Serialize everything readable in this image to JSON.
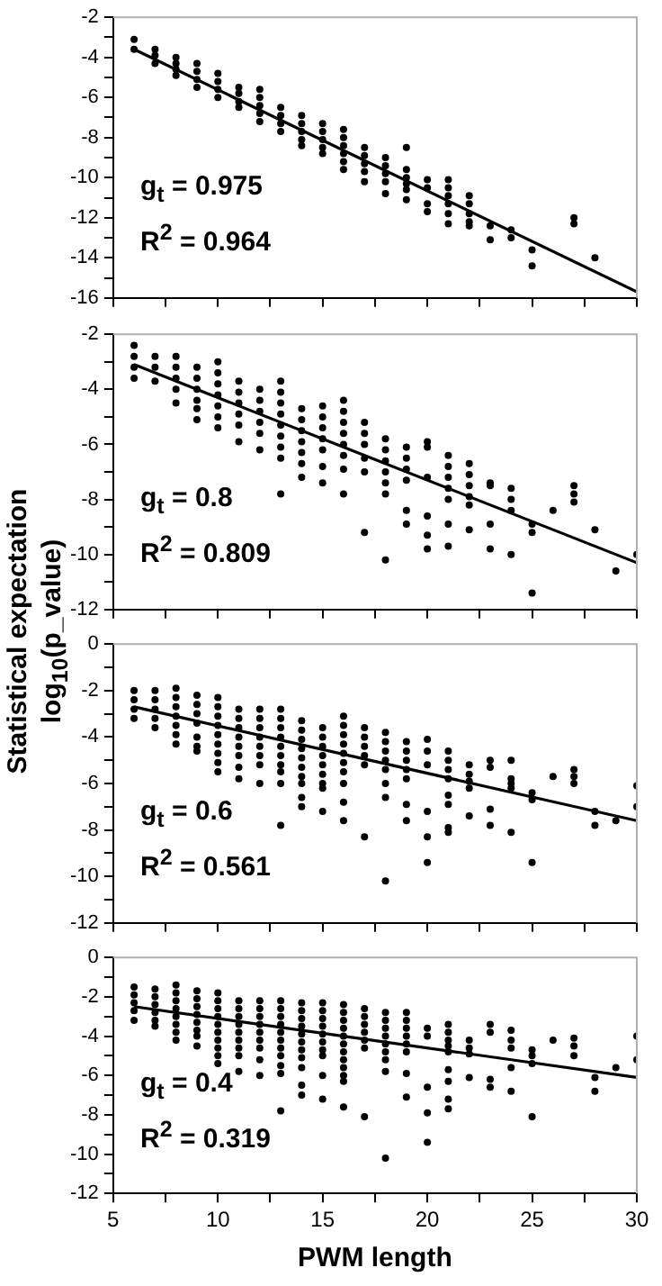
{
  "chart_data": [
    {
      "type": "scatter",
      "tick_labels": "y",
      "xlim": [
        5,
        30
      ],
      "xticks": [
        5,
        {
          "value": 7.5,
          "label": null
        },
        10,
        {
          "value": 12.5,
          "label": null
        },
        15,
        {
          "value": 17.5,
          "label": null
        },
        20,
        {
          "value": 22.5,
          "label": null
        },
        25,
        {
          "value": 27.5,
          "label": null
        },
        30
      ],
      "ylim": [
        -16,
        -2
      ],
      "yticks": [
        -16,
        {
          "value": -15,
          "label": null
        },
        -14,
        {
          "value": -13,
          "label": null
        },
        -12,
        {
          "value": -11,
          "label": null
        },
        -10,
        {
          "value": -9,
          "label": null
        },
        -8,
        {
          "value": -7,
          "label": null
        },
        -6,
        {
          "value": -5,
          "label": null
        },
        -4,
        {
          "value": -3,
          "label": null
        },
        -2
      ],
      "annotations": [
        "g$_{t}$ = 0.975",
        "R$^{2}$ = 0.964"
      ],
      "series": [
        {
          "marker": "circle",
          "color": "#000000",
          "x": [
            6,
            6,
            7,
            7,
            7,
            8,
            8,
            8,
            8,
            9,
            9,
            9,
            9,
            10,
            10,
            10,
            10,
            11,
            11,
            11,
            11,
            12,
            12,
            12,
            12,
            12,
            13,
            13,
            13,
            13,
            14,
            14,
            14,
            14,
            14,
            15,
            15,
            15,
            15,
            15,
            16,
            16,
            16,
            16,
            16,
            16,
            17,
            17,
            17,
            17,
            17,
            18,
            18,
            18,
            18,
            18,
            19,
            19,
            19,
            19,
            19,
            19,
            20,
            20,
            20,
            20,
            21,
            21,
            21,
            21,
            21,
            21,
            22,
            22,
            22,
            22,
            22,
            23,
            23,
            24,
            24,
            25,
            25,
            27,
            27,
            28
          ],
          "values": [
            -3.1,
            -3.6,
            -3.6,
            -3.9,
            -4.3,
            -4.0,
            -4.3,
            -4.6,
            -4.9,
            -4.3,
            -4.7,
            -5.1,
            -5.5,
            -4.8,
            -5.2,
            -5.6,
            -6.0,
            -5.5,
            -5.8,
            -6.2,
            -6.5,
            -5.6,
            -6.0,
            -6.4,
            -6.8,
            -7.2,
            -6.5,
            -6.9,
            -7.3,
            -7.7,
            -6.9,
            -7.3,
            -7.7,
            -8.1,
            -8.4,
            -7.3,
            -7.7,
            -8.1,
            -8.5,
            -8.8,
            -7.6,
            -8.0,
            -8.4,
            -8.8,
            -9.2,
            -9.6,
            -8.5,
            -8.9,
            -9.3,
            -9.7,
            -10.2,
            -9.0,
            -9.4,
            -9.8,
            -10.2,
            -10.8,
            -8.5,
            -9.6,
            -10.0,
            -10.3,
            -10.6,
            -11.1,
            -10.1,
            -10.5,
            -11.3,
            -11.7,
            -10.1,
            -10.5,
            -10.9,
            -11.3,
            -11.8,
            -12.3,
            -10.9,
            -11.3,
            -11.8,
            -12.2,
            -12.4,
            -12.4,
            -13.1,
            -12.6,
            -13.0,
            -13.6,
            -14.4,
            -12.0,
            -12.3,
            -14.0
          ]
        },
        {
          "type": "line",
          "marker": "none",
          "color": "#000000",
          "x": [
            6,
            30
          ],
          "values": [
            -3.6,
            -15.7
          ]
        }
      ]
    },
    {
      "type": "scatter",
      "tick_labels": "y",
      "ylabel": "Statistical expectation log$_{10}$(p_value)",
      "xlim": [
        5,
        30
      ],
      "xticks": [
        5,
        {
          "value": 7.5,
          "label": null
        },
        10,
        {
          "value": 12.5,
          "label": null
        },
        15,
        {
          "value": 17.5,
          "label": null
        },
        20,
        {
          "value": 22.5,
          "label": null
        },
        25,
        {
          "value": 27.5,
          "label": null
        },
        30
      ],
      "ylim": [
        -12,
        -2
      ],
      "yticks": [
        -12,
        {
          "value": -11,
          "label": null
        },
        -10,
        {
          "value": -9,
          "label": null
        },
        -8,
        {
          "value": -7,
          "label": null
        },
        -6,
        {
          "value": -5,
          "label": null
        },
        -4,
        {
          "value": -3,
          "label": null
        },
        -2
      ],
      "annotations": [
        "g$_{t}$ = 0.8",
        "R$^{2}$ = 0.809"
      ],
      "series": [
        {
          "marker": "circle",
          "color": "#000000",
          "x": [
            6,
            6,
            6,
            6,
            7,
            7,
            7,
            8,
            8,
            8,
            8,
            8,
            9,
            9,
            9,
            9,
            9,
            9,
            10,
            10,
            10,
            10,
            10,
            10,
            10,
            11,
            11,
            11,
            11,
            11,
            11,
            12,
            12,
            12,
            12,
            12,
            12,
            13,
            13,
            13,
            13,
            13,
            13,
            13,
            13,
            13,
            14,
            14,
            14,
            14,
            14,
            14,
            14,
            15,
            15,
            15,
            15,
            15,
            15,
            15,
            16,
            16,
            16,
            16,
            16,
            16,
            16,
            16,
            17,
            17,
            17,
            17,
            17,
            17,
            18,
            18,
            18,
            18,
            18,
            18,
            18,
            19,
            19,
            19,
            19,
            19,
            19,
            20,
            20,
            20,
            20,
            20,
            20,
            21,
            21,
            21,
            21,
            21,
            21,
            21,
            22,
            22,
            22,
            22,
            22,
            22,
            23,
            23,
            23,
            23,
            24,
            24,
            24,
            24,
            25,
            25,
            25,
            26,
            27,
            27,
            27,
            28,
            29,
            30
          ],
          "values": [
            -2.4,
            -2.8,
            -3.2,
            -3.6,
            -2.8,
            -3.2,
            -3.7,
            -2.8,
            -3.2,
            -3.6,
            -4.0,
            -4.5,
            -3.2,
            -3.6,
            -4.0,
            -4.4,
            -4.7,
            -5.1,
            -3.0,
            -3.4,
            -3.8,
            -4.2,
            -4.6,
            -5.0,
            -5.4,
            -3.7,
            -4.1,
            -4.5,
            -4.9,
            -5.3,
            -5.9,
            -4.0,
            -4.4,
            -4.8,
            -5.2,
            -5.6,
            -6.2,
            -3.7,
            -4.1,
            -4.5,
            -4.9,
            -5.3,
            -5.7,
            -6.1,
            -6.5,
            -7.8,
            -4.7,
            -5.1,
            -5.5,
            -5.9,
            -6.3,
            -6.7,
            -7.2,
            -4.6,
            -5.0,
            -5.4,
            -5.8,
            -6.2,
            -6.8,
            -7.4,
            -4.4,
            -4.8,
            -5.2,
            -5.6,
            -6.0,
            -6.4,
            -6.9,
            -7.8,
            -5.2,
            -5.6,
            -6.0,
            -6.5,
            -7.0,
            -9.2,
            -5.8,
            -6.2,
            -6.6,
            -7.0,
            -7.4,
            -7.8,
            -10.2,
            -6.1,
            -6.5,
            -6.9,
            -7.3,
            -8.4,
            -8.9,
            -5.9,
            -6.1,
            -7.2,
            -8.6,
            -9.3,
            -9.8,
            -6.4,
            -6.8,
            -7.2,
            -7.6,
            -8.0,
            -8.9,
            -9.7,
            -6.7,
            -7.1,
            -7.5,
            -7.9,
            -8.2,
            -9.1,
            -7.4,
            -7.5,
            -8.9,
            -9.8,
            -7.6,
            -8.0,
            -8.4,
            -10.0,
            -8.9,
            -9.2,
            -11.4,
            -8.4,
            -7.5,
            -7.8,
            -8.1,
            -9.1,
            -10.6,
            -10.0
          ]
        },
        {
          "type": "line",
          "marker": "none",
          "color": "#000000",
          "x": [
            6,
            30
          ],
          "values": [
            -3.1,
            -10.3
          ]
        }
      ]
    },
    {
      "type": "scatter",
      "tick_labels": "y",
      "xlim": [
        5,
        30
      ],
      "xticks": [
        5,
        {
          "value": 7.5,
          "label": null
        },
        10,
        {
          "value": 12.5,
          "label": null
        },
        15,
        {
          "value": 17.5,
          "label": null
        },
        20,
        {
          "value": 22.5,
          "label": null
        },
        25,
        {
          "value": 27.5,
          "label": null
        },
        30
      ],
      "ylim": [
        -12,
        0
      ],
      "yticks": [
        -12,
        {
          "value": -11,
          "label": null
        },
        -10,
        {
          "value": -9,
          "label": null
        },
        -8,
        {
          "value": -7,
          "label": null
        },
        -6,
        {
          "value": -5,
          "label": null
        },
        -4,
        {
          "value": -3,
          "label": null
        },
        -2,
        {
          "value": -1,
          "label": null
        },
        0
      ],
      "annotations": [
        "g$_{t}$ = 0.6",
        "R$^{2}$ = 0.561"
      ],
      "series": [
        {
          "marker": "circle",
          "color": "#000000",
          "x": [
            6,
            6,
            6,
            6,
            7,
            7,
            7,
            7,
            7,
            8,
            8,
            8,
            8,
            8,
            8,
            8,
            9,
            9,
            9,
            9,
            9,
            9,
            9,
            10,
            10,
            10,
            10,
            10,
            10,
            10,
            10,
            10,
            11,
            11,
            11,
            11,
            11,
            11,
            11,
            11,
            12,
            12,
            12,
            12,
            12,
            12,
            12,
            12,
            13,
            13,
            13,
            13,
            13,
            13,
            13,
            13,
            13,
            13,
            14,
            14,
            14,
            14,
            14,
            14,
            14,
            14,
            14,
            14,
            15,
            15,
            15,
            15,
            15,
            15,
            15,
            15,
            15,
            16,
            16,
            16,
            16,
            16,
            16,
            16,
            16,
            16,
            16,
            17,
            17,
            17,
            17,
            17,
            17,
            18,
            18,
            18,
            18,
            18,
            18,
            18,
            18,
            19,
            19,
            19,
            19,
            19,
            19,
            19,
            20,
            20,
            20,
            20,
            20,
            20,
            21,
            21,
            21,
            21,
            21,
            21,
            21,
            21,
            22,
            22,
            22,
            22,
            22,
            23,
            23,
            23,
            23,
            24,
            24,
            24,
            24,
            24,
            25,
            25,
            25,
            26,
            27,
            27,
            27,
            28,
            28,
            29,
            30,
            30
          ],
          "values": [
            -2.0,
            -2.4,
            -2.8,
            -3.2,
            -2.0,
            -2.4,
            -2.8,
            -3.2,
            -3.6,
            -1.9,
            -2.3,
            -2.7,
            -3.1,
            -3.5,
            -3.9,
            -4.3,
            -2.2,
            -2.6,
            -3.0,
            -3.4,
            -4.0,
            -4.4,
            -4.6,
            -2.3,
            -2.7,
            -3.1,
            -3.5,
            -3.9,
            -4.3,
            -4.7,
            -5.1,
            -5.5,
            -2.8,
            -3.2,
            -3.6,
            -4.0,
            -4.4,
            -4.8,
            -5.3,
            -5.8,
            -2.8,
            -3.2,
            -3.6,
            -4.0,
            -4.4,
            -4.8,
            -5.2,
            -6.0,
            -2.8,
            -3.2,
            -3.6,
            -4.0,
            -4.4,
            -4.8,
            -5.2,
            -5.5,
            -6.0,
            -7.8,
            -3.3,
            -3.7,
            -4.1,
            -4.5,
            -4.9,
            -5.3,
            -5.7,
            -6.0,
            -6.6,
            -7.0,
            -3.6,
            -4.0,
            -4.4,
            -4.8,
            -5.2,
            -5.6,
            -6.0,
            -6.2,
            -7.2,
            -3.1,
            -3.5,
            -3.9,
            -4.3,
            -4.7,
            -5.1,
            -5.5,
            -6.0,
            -6.8,
            -7.6,
            -3.6,
            -4.0,
            -4.4,
            -4.8,
            -5.2,
            -8.3,
            -3.8,
            -4.2,
            -4.6,
            -5.0,
            -5.4,
            -6.0,
            -6.6,
            -10.2,
            -4.2,
            -4.6,
            -5.0,
            -5.4,
            -5.8,
            -6.9,
            -7.6,
            -4.1,
            -4.6,
            -5.2,
            -7.2,
            -8.3,
            -9.4,
            -4.6,
            -5.0,
            -5.4,
            -5.8,
            -6.5,
            -6.9,
            -7.9,
            -8.1,
            -5.2,
            -5.6,
            -5.9,
            -6.2,
            -7.4,
            -5.0,
            -5.3,
            -7.1,
            -7.8,
            -5.0,
            -5.8,
            -6.0,
            -6.2,
            -8.1,
            -6.4,
            -6.7,
            -9.4,
            -5.7,
            -5.4,
            -5.7,
            -6.0,
            -7.2,
            -7.8,
            -7.6,
            -6.1,
            -7.0
          ]
        },
        {
          "type": "line",
          "marker": "none",
          "color": "#000000",
          "x": [
            6,
            30
          ],
          "values": [
            -2.7,
            -7.6
          ]
        }
      ]
    },
    {
      "type": "scatter",
      "xlabel": "PWM length",
      "xlim": [
        5,
        30
      ],
      "xticks": [
        5,
        {
          "value": 7.5,
          "label": null
        },
        10,
        {
          "value": 12.5,
          "label": null
        },
        15,
        {
          "value": 17.5,
          "label": null
        },
        20,
        {
          "value": 22.5,
          "label": null
        },
        25,
        {
          "value": 27.5,
          "label": null
        },
        30
      ],
      "ylim": [
        -12,
        0
      ],
      "yticks": [
        -12,
        {
          "value": -11,
          "label": null
        },
        -10,
        {
          "value": -9,
          "label": null
        },
        -8,
        {
          "value": -7,
          "label": null
        },
        -6,
        {
          "value": -5,
          "label": null
        },
        -4,
        {
          "value": -3,
          "label": null
        },
        -2,
        {
          "value": -1,
          "label": null
        },
        0
      ],
      "annotations": [
        "g$_{t}$ = 0.4",
        "R$^{2}$ = 0.319"
      ],
      "series": [
        {
          "marker": "circle",
          "color": "#000000",
          "x": [
            6,
            6,
            6,
            6,
            6,
            7,
            7,
            7,
            7,
            7,
            7,
            8,
            8,
            8,
            8,
            8,
            8,
            8,
            8,
            9,
            9,
            9,
            9,
            9,
            9,
            9,
            9,
            10,
            10,
            10,
            10,
            10,
            10,
            10,
            10,
            10,
            10,
            11,
            11,
            11,
            11,
            11,
            11,
            11,
            11,
            11,
            12,
            12,
            12,
            12,
            12,
            12,
            12,
            12,
            12,
            13,
            13,
            13,
            13,
            13,
            13,
            13,
            13,
            13,
            13,
            13,
            14,
            14,
            14,
            14,
            14,
            14,
            14,
            14,
            14,
            14,
            14,
            15,
            15,
            15,
            15,
            15,
            15,
            15,
            15,
            15,
            15,
            16,
            16,
            16,
            16,
            16,
            16,
            16,
            16,
            16,
            16,
            16,
            16,
            17,
            17,
            17,
            17,
            17,
            17,
            17,
            18,
            18,
            18,
            18,
            18,
            18,
            18,
            18,
            18,
            19,
            19,
            19,
            19,
            19,
            19,
            19,
            19,
            20,
            20,
            20,
            20,
            20,
            21,
            21,
            21,
            21,
            21,
            21,
            21,
            21,
            21,
            22,
            22,
            22,
            22,
            23,
            23,
            23,
            23,
            24,
            24,
            24,
            24,
            24,
            25,
            25,
            25,
            25,
            26,
            27,
            27,
            27,
            28,
            28,
            29,
            30,
            30
          ],
          "values": [
            -1.5,
            -1.9,
            -2.3,
            -2.7,
            -3.2,
            -1.6,
            -2.0,
            -2.4,
            -2.8,
            -3.2,
            -3.5,
            -1.4,
            -1.8,
            -2.2,
            -2.6,
            -3.0,
            -3.4,
            -3.8,
            -4.2,
            -1.7,
            -2.1,
            -2.5,
            -2.9,
            -3.3,
            -3.7,
            -4.0,
            -4.5,
            -1.8,
            -2.2,
            -2.6,
            -3.0,
            -3.4,
            -3.8,
            -4.2,
            -4.6,
            -5.0,
            -5.4,
            -2.2,
            -2.6,
            -3.0,
            -3.4,
            -3.8,
            -4.2,
            -4.6,
            -5.0,
            -5.8,
            -2.2,
            -2.6,
            -3.0,
            -3.4,
            -3.8,
            -4.2,
            -4.6,
            -5.2,
            -6.0,
            -2.2,
            -2.6,
            -3.0,
            -3.4,
            -3.8,
            -4.2,
            -4.6,
            -5.0,
            -5.5,
            -5.9,
            -7.8,
            -2.3,
            -2.7,
            -3.1,
            -3.5,
            -3.9,
            -4.3,
            -4.7,
            -5.1,
            -5.6,
            -6.5,
            -7.0,
            -2.3,
            -2.7,
            -3.1,
            -3.5,
            -3.9,
            -4.3,
            -4.7,
            -5.0,
            -6.0,
            -7.2,
            -2.4,
            -2.8,
            -3.2,
            -3.6,
            -4.0,
            -4.4,
            -4.8,
            -5.2,
            -5.6,
            -6.0,
            -6.3,
            -7.6,
            -2.6,
            -3.0,
            -3.4,
            -3.8,
            -4.2,
            -4.6,
            -8.1,
            -2.8,
            -3.2,
            -3.6,
            -4.0,
            -4.4,
            -4.8,
            -5.2,
            -5.8,
            -10.2,
            -2.8,
            -3.2,
            -3.6,
            -4.0,
            -4.4,
            -4.8,
            -5.9,
            -7.1,
            -3.6,
            -4.0,
            -6.6,
            -7.9,
            -9.4,
            -3.4,
            -3.8,
            -4.2,
            -4.5,
            -4.8,
            -5.7,
            -6.3,
            -7.2,
            -7.7,
            -4.2,
            -4.6,
            -4.9,
            -6.1,
            -3.4,
            -3.8,
            -6.2,
            -6.6,
            -3.7,
            -4.2,
            -4.6,
            -5.6,
            -6.8,
            -4.7,
            -5.0,
            -5.4,
            -8.1,
            -4.2,
            -4.1,
            -4.5,
            -5.0,
            -6.1,
            -6.8,
            -5.6,
            -4.0,
            -5.2
          ]
        },
        {
          "type": "line",
          "marker": "none",
          "color": "#000000",
          "x": [
            6,
            30
          ],
          "values": [
            -2.5,
            -6.1
          ]
        }
      ]
    }
  ]
}
